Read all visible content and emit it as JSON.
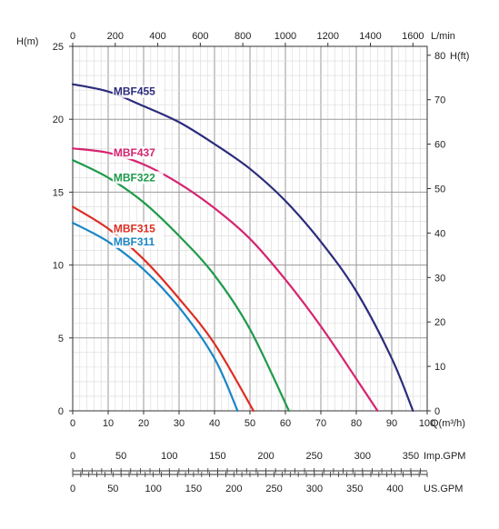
{
  "chart_data": {
    "type": "line",
    "axes": {
      "x_bottom": {
        "label": "Q(m³/h)",
        "min": 0,
        "max": 100,
        "ticks": [
          "0",
          "10",
          "20",
          "30",
          "40",
          "50",
          "60",
          "70",
          "80",
          "90",
          "100"
        ]
      },
      "x_top": {
        "label": "L/min",
        "min": 0,
        "max": 1667,
        "ticks": [
          "0",
          "200",
          "400",
          "600",
          "800",
          "1000",
          "1200",
          "1400",
          "1600"
        ]
      },
      "y_left": {
        "label": "H(m)",
        "min": 0,
        "max": 25,
        "ticks": [
          "0",
          "5",
          "10",
          "15",
          "20",
          "25"
        ]
      },
      "y_right": {
        "label": "H(ft)",
        "min": 0,
        "max": 82,
        "ticks": [
          "0",
          "10",
          "20",
          "30",
          "40",
          "50",
          "60",
          "70",
          "80"
        ]
      },
      "imp_gpm": {
        "label": "Imp.GPM",
        "min": 0,
        "max": 367,
        "ticks": [
          "0",
          "50",
          "100",
          "150",
          "200",
          "250",
          "300",
          "350"
        ]
      },
      "us_gpm": {
        "label": "US.GPM",
        "min": 0,
        "max": 440,
        "ticks": [
          "0",
          "50",
          "100",
          "150",
          "200",
          "250",
          "300",
          "350",
          "400"
        ]
      }
    },
    "grid": true,
    "series": [
      {
        "name": "MBF455",
        "color": "#2b2c7c",
        "x": [
          0,
          10,
          20,
          30,
          40,
          50,
          60,
          70,
          80,
          90,
          96
        ],
        "y": [
          22.4,
          21.9,
          20.9,
          19.8,
          18.3,
          16.6,
          14.4,
          11.6,
          8.2,
          3.6,
          0
        ]
      },
      {
        "name": "MBF437",
        "color": "#d6246f",
        "x": [
          0,
          10,
          20,
          30,
          40,
          50,
          60,
          70,
          80,
          86
        ],
        "y": [
          18.0,
          17.7,
          16.9,
          15.6,
          13.9,
          11.8,
          9.0,
          5.8,
          2.2,
          0
        ]
      },
      {
        "name": "MBF322",
        "color": "#1f9a4a",
        "x": [
          0,
          10,
          20,
          30,
          40,
          50,
          61
        ],
        "y": [
          17.2,
          16.0,
          14.3,
          12.0,
          9.3,
          5.6,
          0
        ]
      },
      {
        "name": "MBF315",
        "color": "#dd2e23",
        "x": [
          0,
          10,
          20,
          30,
          40,
          51
        ],
        "y": [
          14.0,
          12.5,
          10.4,
          7.7,
          4.6,
          0
        ]
      },
      {
        "name": "MBF311",
        "color": "#1a86c6",
        "x": [
          0,
          10,
          20,
          30,
          40,
          46.5
        ],
        "y": [
          12.9,
          11.6,
          9.7,
          7.1,
          3.6,
          0
        ]
      }
    ]
  }
}
